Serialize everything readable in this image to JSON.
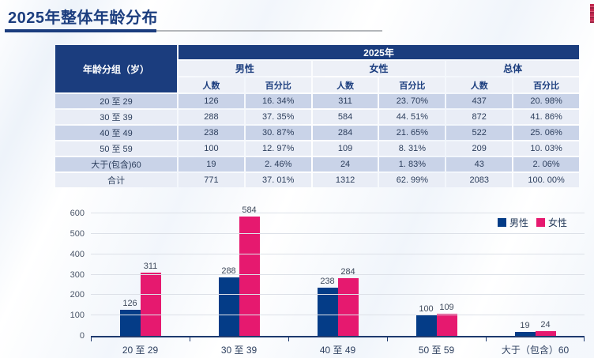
{
  "page": {
    "title": "2025年整体年龄分布"
  },
  "icons": {
    "logo_sliver": "partial-brand-logo-mark"
  },
  "colors": {
    "navy": "#1b3d7e",
    "bar_male": "#043c87",
    "bar_female": "#e6196f",
    "row_band_dark": "#c9d3e8",
    "row_band_light": "#e9edf6",
    "header_light": "#edf0f7",
    "underline_blue": "#1b3d7e",
    "underline_gray": "#b3b6ba"
  },
  "table": {
    "header": {
      "row_group_label": "年龄分组（岁）",
      "year_label": "2025年",
      "groups": [
        "男性",
        "女性",
        "总体"
      ],
      "sub_headers": [
        "人数",
        "百分比"
      ]
    },
    "rows": [
      {
        "label": "20 至 29",
        "cells": [
          "126",
          "16. 34%",
          "311",
          "23. 70%",
          "437",
          "20. 98%"
        ]
      },
      {
        "label": "30 至 39",
        "cells": [
          "288",
          "37. 35%",
          "584",
          "44. 51%",
          "872",
          "41. 86%"
        ]
      },
      {
        "label": "40 至 49",
        "cells": [
          "238",
          "30. 87%",
          "284",
          "21. 65%",
          "522",
          "25. 06%"
        ]
      },
      {
        "label": "50 至 59",
        "cells": [
          "100",
          "12. 97%",
          "109",
          "8. 31%",
          "209",
          "10. 03%"
        ]
      },
      {
        "label": "大于(包含)60",
        "cells": [
          "19",
          "2. 46%",
          "24",
          "1. 83%",
          "43",
          "2. 06%"
        ]
      },
      {
        "label": "合计",
        "cells": [
          "771",
          "37. 01%",
          "1312",
          "62. 99%",
          "2083",
          "100. 00%"
        ]
      }
    ]
  },
  "chart_data": {
    "type": "bar",
    "title": "",
    "xlabel": "",
    "ylabel": "",
    "categories": [
      "20 至 29",
      "30 至 39",
      "40 至 49",
      "50 至 59",
      "大于（包含）60"
    ],
    "series": [
      {
        "name": "男性",
        "color": "#043c87",
        "values": [
          126,
          288,
          238,
          100,
          19
        ]
      },
      {
        "name": "女性",
        "color": "#e6196f",
        "values": [
          311,
          584,
          284,
          109,
          24
        ]
      }
    ],
    "ylim": [
      0,
      600
    ],
    "yticks": [
      0,
      100,
      200,
      300,
      400,
      500,
      600
    ],
    "grid": true,
    "legend_position": "top-right",
    "data_labels": true
  }
}
